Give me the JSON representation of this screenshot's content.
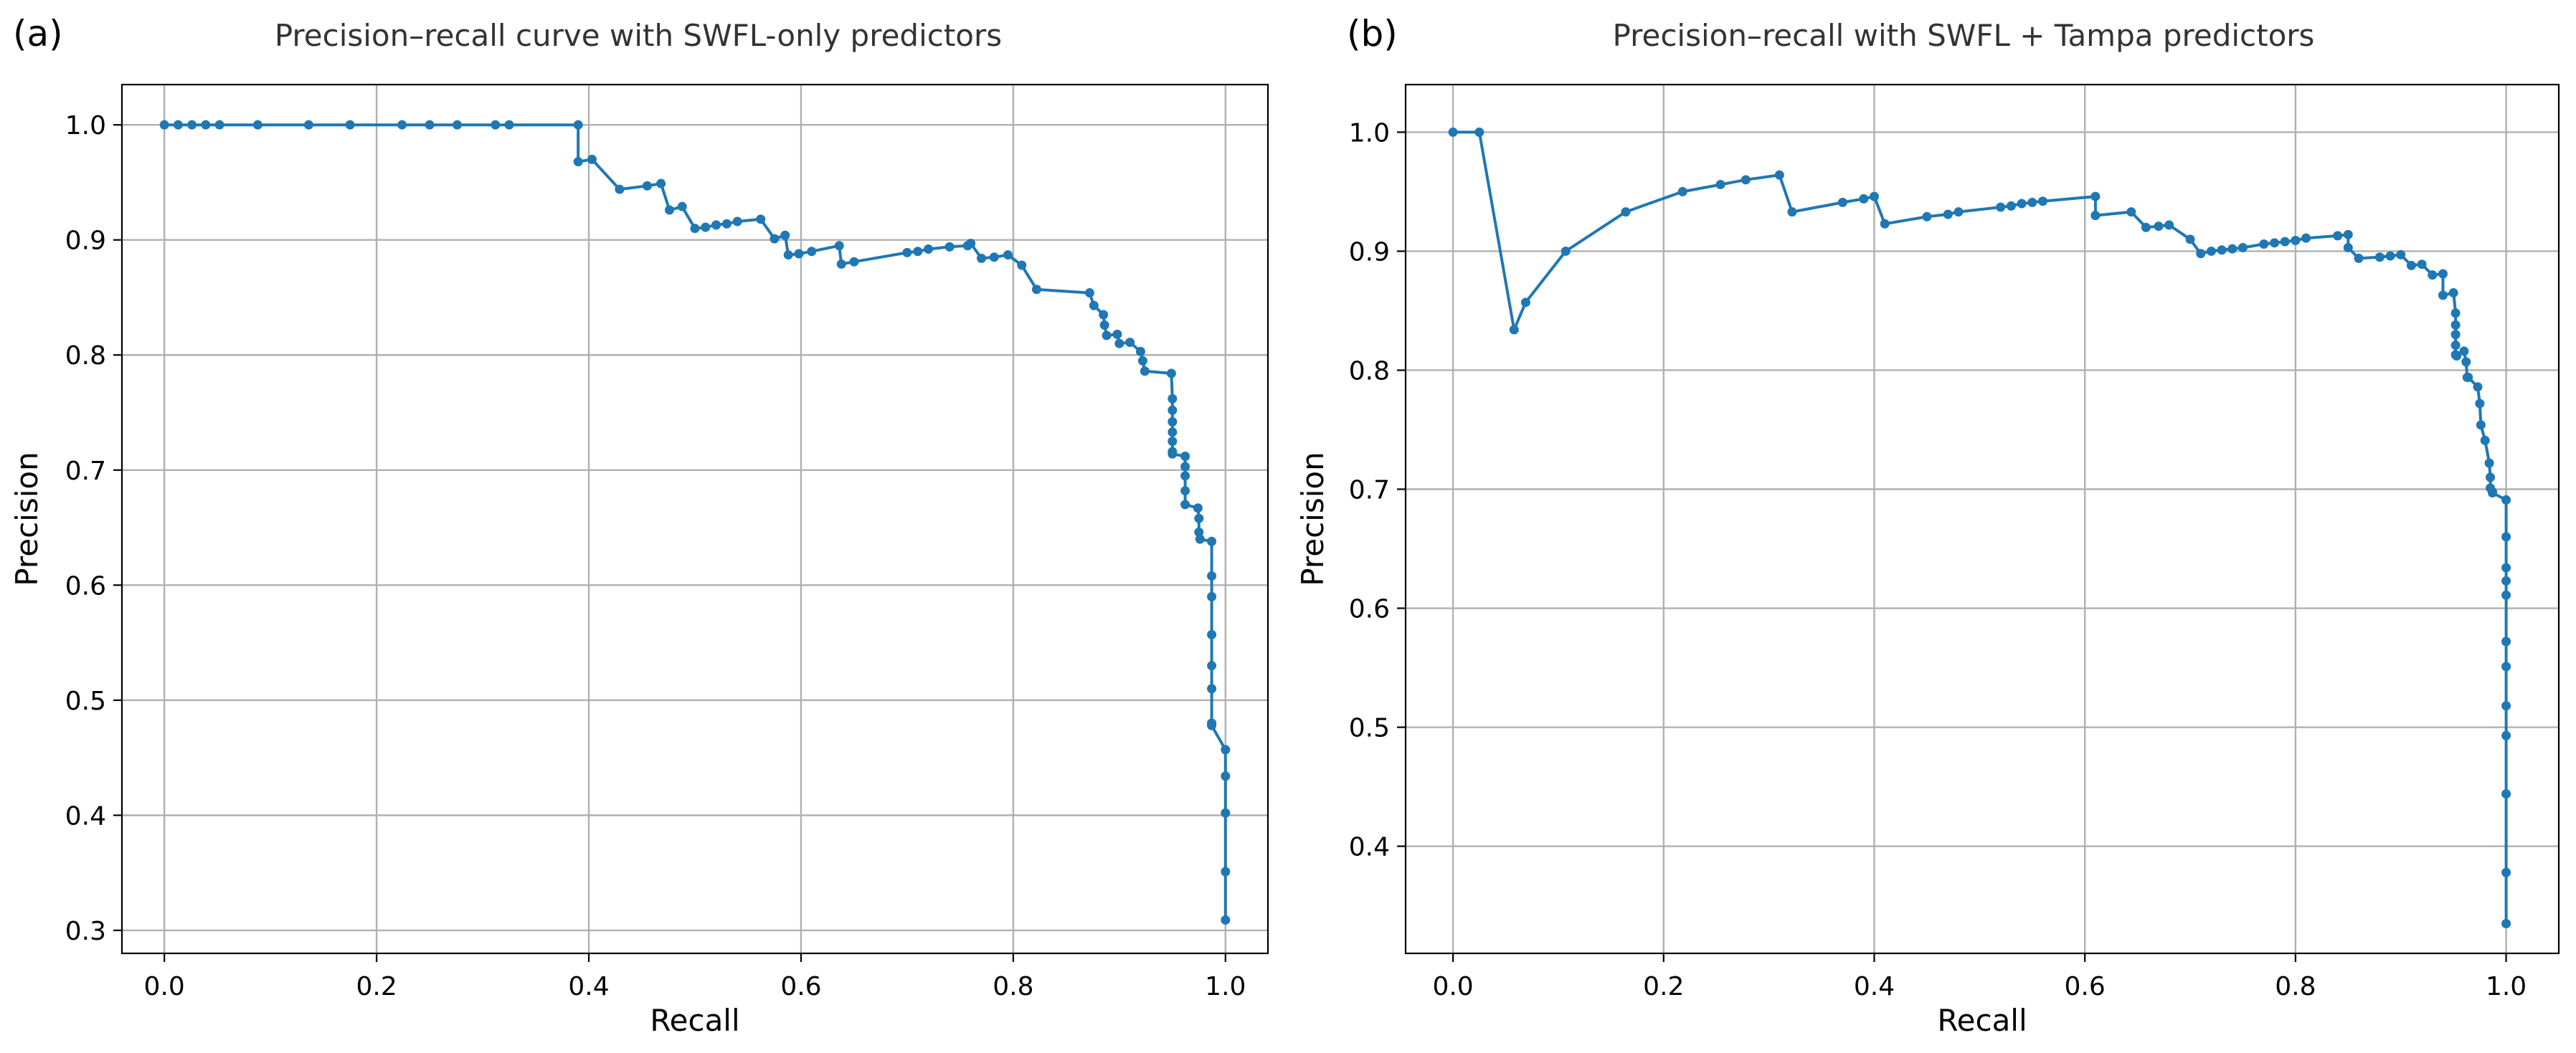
{
  "chart_data": [
    {
      "type": "line",
      "panel_label": "(a)",
      "title": "Precision–recall curve with SWFL-only predictors",
      "xlabel": "Recall",
      "ylabel": "Precision",
      "xlim": [
        -0.04,
        1.04
      ],
      "ylim": [
        0.28,
        1.035
      ],
      "xticks": [
        0.0,
        0.2,
        0.4,
        0.6,
        0.8,
        1.0
      ],
      "xtick_labels": [
        "0.0",
        "0.2",
        "0.4",
        "0.6",
        "0.8",
        "1.0"
      ],
      "yticks": [
        0.3,
        0.4,
        0.5,
        0.6,
        0.7,
        0.8,
        0.9,
        1.0
      ],
      "ytick_labels": [
        "0.3",
        "0.4",
        "0.5",
        "0.6",
        "0.7",
        "0.8",
        "0.9",
        "1.0"
      ],
      "grid": true,
      "color": "#1f77b4",
      "series": [
        {
          "x": [
            0.0,
            0.013,
            0.026,
            0.039,
            0.052,
            0.088,
            0.136,
            0.175,
            0.224,
            0.25,
            0.276,
            0.312,
            0.325,
            0.39,
            0.39,
            0.403,
            0.429,
            0.455,
            0.468,
            0.476,
            0.488,
            0.5,
            0.51,
            0.52,
            0.53,
            0.54,
            0.562,
            0.575,
            0.585,
            0.588,
            0.598,
            0.61,
            0.636,
            0.638,
            0.65,
            0.7,
            0.71,
            0.72,
            0.74,
            0.757,
            0.76,
            0.77,
            0.782,
            0.795,
            0.808,
            0.822,
            0.872,
            0.876,
            0.885,
            0.886,
            0.888,
            0.898,
            0.9,
            0.91,
            0.92,
            0.922,
            0.924,
            0.949,
            0.95,
            0.95,
            0.95,
            0.95,
            0.95,
            0.95,
            0.95,
            0.962,
            0.962,
            0.962,
            0.962,
            0.962,
            0.974,
            0.975,
            0.975,
            0.976,
            0.987,
            0.987,
            0.987,
            0.987,
            0.987,
            0.987,
            0.987,
            0.987,
            0.987,
            1.0,
            1.0,
            1.0,
            1.0,
            1.0
          ],
          "y": [
            1.0,
            1.0,
            1.0,
            1.0,
            1.0,
            1.0,
            1.0,
            1.0,
            1.0,
            1.0,
            1.0,
            1.0,
            1.0,
            1.0,
            0.968,
            0.97,
            0.944,
            0.947,
            0.949,
            0.926,
            0.929,
            0.91,
            0.911,
            0.913,
            0.914,
            0.916,
            0.918,
            0.901,
            0.904,
            0.887,
            0.888,
            0.89,
            0.895,
            0.879,
            0.881,
            0.889,
            0.89,
            0.892,
            0.894,
            0.895,
            0.897,
            0.884,
            0.885,
            0.887,
            0.878,
            0.857,
            0.854,
            0.843,
            0.835,
            0.826,
            0.817,
            0.818,
            0.81,
            0.811,
            0.803,
            0.795,
            0.786,
            0.784,
            0.762,
            0.752,
            0.742,
            0.733,
            0.725,
            0.716,
            0.714,
            0.712,
            0.703,
            0.695,
            0.682,
            0.67,
            0.667,
            0.658,
            0.646,
            0.64,
            0.638,
            0.608,
            0.59,
            0.557,
            0.53,
            0.51,
            0.48,
            0.48,
            0.478,
            0.457,
            0.434,
            0.402,
            0.351,
            0.309
          ]
        }
      ]
    },
    {
      "type": "line",
      "panel_label": "(b)",
      "title": "Precision–recall with SWFL + Tampa predictors",
      "xlabel": "Recall",
      "ylabel": "Precision",
      "xlim": [
        -0.045,
        1.05
      ],
      "ylim": [
        0.31,
        1.04
      ],
      "xticks": [
        0.0,
        0.2,
        0.4,
        0.6,
        0.8,
        1.0
      ],
      "xtick_labels": [
        "0.0",
        "0.2",
        "0.4",
        "0.6",
        "0.8",
        "1.0"
      ],
      "yticks": [
        0.4,
        0.5,
        0.6,
        0.7,
        0.8,
        0.9,
        1.0
      ],
      "ytick_labels": [
        "0.4",
        "0.5",
        "0.6",
        "0.7",
        "0.8",
        "0.9",
        "1.0"
      ],
      "grid": true,
      "color": "#1f77b4",
      "series": [
        {
          "x": [
            0.0,
            0.025,
            0.058,
            0.069,
            0.107,
            0.164,
            0.218,
            0.254,
            0.278,
            0.31,
            0.322,
            0.37,
            0.39,
            0.4,
            0.41,
            0.45,
            0.47,
            0.48,
            0.52,
            0.53,
            0.54,
            0.55,
            0.56,
            0.61,
            0.61,
            0.644,
            0.658,
            0.67,
            0.68,
            0.7,
            0.71,
            0.72,
            0.73,
            0.74,
            0.75,
            0.77,
            0.78,
            0.79,
            0.8,
            0.81,
            0.84,
            0.85,
            0.85,
            0.86,
            0.88,
            0.89,
            0.9,
            0.91,
            0.92,
            0.93,
            0.94,
            0.94,
            0.95,
            0.952,
            0.952,
            0.952,
            0.952,
            0.952,
            0.953,
            0.96,
            0.962,
            0.963,
            0.964,
            0.973,
            0.975,
            0.976,
            0.98,
            0.984,
            0.985,
            0.985,
            0.987,
            0.987,
            1.0,
            1.0,
            1.0,
            1.0,
            1.0,
            1.0,
            1.0,
            1.0,
            1.0,
            1.0,
            1.0,
            1.0
          ],
          "y": [
            1.0,
            1.0,
            0.834,
            0.857,
            0.9,
            0.933,
            0.95,
            0.956,
            0.96,
            0.964,
            0.933,
            0.941,
            0.944,
            0.946,
            0.923,
            0.929,
            0.931,
            0.933,
            0.937,
            0.938,
            0.94,
            0.941,
            0.942,
            0.946,
            0.93,
            0.933,
            0.92,
            0.921,
            0.922,
            0.91,
            0.898,
            0.9,
            0.901,
            0.902,
            0.903,
            0.906,
            0.907,
            0.908,
            0.909,
            0.911,
            0.913,
            0.914,
            0.903,
            0.894,
            0.895,
            0.896,
            0.897,
            0.888,
            0.889,
            0.88,
            0.881,
            0.863,
            0.865,
            0.848,
            0.838,
            0.83,
            0.821,
            0.813,
            0.812,
            0.816,
            0.807,
            0.794,
            0.794,
            0.786,
            0.772,
            0.754,
            0.741,
            0.722,
            0.71,
            0.701,
            0.698,
            0.697,
            0.691,
            0.66,
            0.634,
            0.623,
            0.611,
            0.572,
            0.551,
            0.518,
            0.493,
            0.444,
            0.378,
            0.335
          ]
        }
      ]
    }
  ]
}
